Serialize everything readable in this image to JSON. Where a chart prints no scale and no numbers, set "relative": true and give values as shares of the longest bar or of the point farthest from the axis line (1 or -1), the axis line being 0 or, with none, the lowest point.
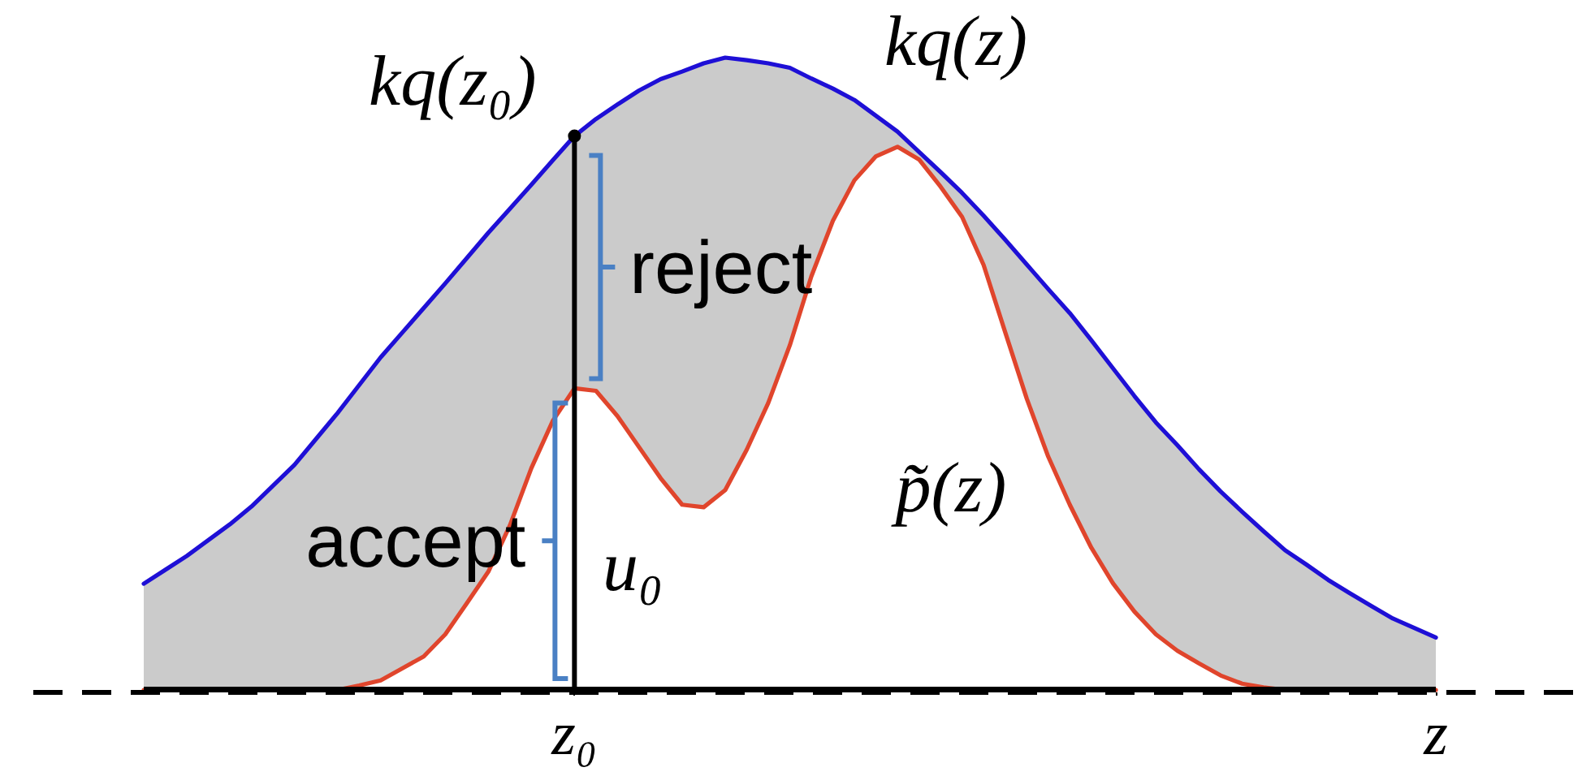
{
  "chart_data": {
    "type": "line",
    "relative": true,
    "categories": [
      null,
      null,
      null,
      null,
      null,
      null,
      null,
      null,
      null,
      null,
      null,
      null,
      null,
      null,
      null,
      null,
      null,
      null,
      null,
      null,
      "z₀",
      null,
      null,
      null,
      null,
      null,
      null,
      null,
      null,
      null,
      null,
      null,
      null,
      null,
      null,
      null,
      null,
      null,
      null,
      null,
      null,
      null,
      null,
      null,
      null,
      null,
      null,
      null,
      null,
      null,
      null,
      null,
      null,
      null,
      null,
      null,
      null,
      null,
      null,
      null,
      "z"
    ],
    "series": [
      {
        "name": "kq(z)",
        "color": "#1e0fd6",
        "values": [
          0.168,
          0.19,
          0.212,
          0.237,
          0.262,
          0.29,
          0.323,
          0.356,
          0.397,
          0.438,
          0.482,
          0.526,
          0.565,
          0.604,
          0.643,
          0.683,
          0.723,
          0.761,
          0.799,
          0.838,
          0.876,
          0.903,
          0.926,
          0.948,
          0.966,
          0.978,
          0.991,
          1.0,
          0.996,
          0.991,
          0.984,
          0.967,
          0.951,
          0.933,
          0.908,
          0.883,
          0.851,
          0.819,
          0.786,
          0.75,
          0.712,
          0.673,
          0.634,
          0.596,
          0.553,
          0.509,
          0.465,
          0.423,
          0.387,
          0.349,
          0.314,
          0.282,
          0.251,
          0.221,
          0.198,
          0.174,
          0.153,
          0.133,
          0.113,
          0.098,
          0.083
        ],
        "lower": [
          0,
          0,
          0,
          0,
          0,
          0,
          0,
          0,
          0,
          0,
          0.007,
          0.015,
          0.034,
          0.053,
          0.088,
          0.137,
          0.187,
          0.26,
          0.351,
          0.426,
          0.477,
          0.473,
          0.433,
          0.384,
          0.335,
          0.293,
          0.289,
          0.316,
          0.38,
          0.454,
          0.545,
          0.654,
          0.742,
          0.806,
          0.844,
          0.859,
          0.839,
          0.796,
          0.748,
          0.672,
          0.566,
          0.461,
          0.369,
          0.293,
          0.225,
          0.169,
          0.124,
          0.088,
          0.062,
          0.042,
          0.023,
          0.01,
          0.004,
          0,
          0,
          0,
          0,
          0,
          0,
          0,
          0
        ],
        "upper": [
          0.168,
          0.19,
          0.212,
          0.237,
          0.262,
          0.29,
          0.323,
          0.356,
          0.397,
          0.438,
          0.482,
          0.526,
          0.565,
          0.604,
          0.643,
          0.683,
          0.723,
          0.761,
          0.799,
          0.838,
          0.876,
          0.903,
          0.926,
          0.948,
          0.966,
          0.978,
          0.991,
          1.0,
          0.996,
          0.991,
          0.984,
          0.967,
          0.951,
          0.933,
          0.908,
          0.883,
          0.851,
          0.819,
          0.786,
          0.75,
          0.712,
          0.673,
          0.634,
          0.596,
          0.553,
          0.509,
          0.465,
          0.423,
          0.387,
          0.349,
          0.314,
          0.282,
          0.251,
          0.221,
          0.198,
          0.174,
          0.153,
          0.133,
          0.113,
          0.098,
          0.083
        ]
      },
      {
        "name": "p̃(z)",
        "color": "#e0452c",
        "values": [
          0,
          0,
          0,
          0,
          0,
          0,
          0,
          0,
          0,
          0,
          0.007,
          0.015,
          0.034,
          0.053,
          0.088,
          0.137,
          0.187,
          0.26,
          0.351,
          0.426,
          0.477,
          0.473,
          0.433,
          0.384,
          0.335,
          0.293,
          0.289,
          0.316,
          0.38,
          0.454,
          0.545,
          0.654,
          0.742,
          0.806,
          0.844,
          0.859,
          0.839,
          0.796,
          0.748,
          0.672,
          0.566,
          0.461,
          0.369,
          0.293,
          0.225,
          0.169,
          0.124,
          0.088,
          0.062,
          0.042,
          0.023,
          0.01,
          0.004,
          0,
          0,
          0,
          0,
          0,
          0,
          0,
          0
        ]
      }
    ],
    "ref_lines": [
      {
        "axis": "y",
        "value": 0,
        "color": "#000000"
      },
      {
        "axis": "x",
        "value": "z₀",
        "color": "#000000"
      }
    ],
    "annotations": [
      {
        "text": "kq(z₀)",
        "x": "z₀",
        "y": 0.876
      },
      "reject",
      "accept",
      "u₀"
    ]
  }
}
